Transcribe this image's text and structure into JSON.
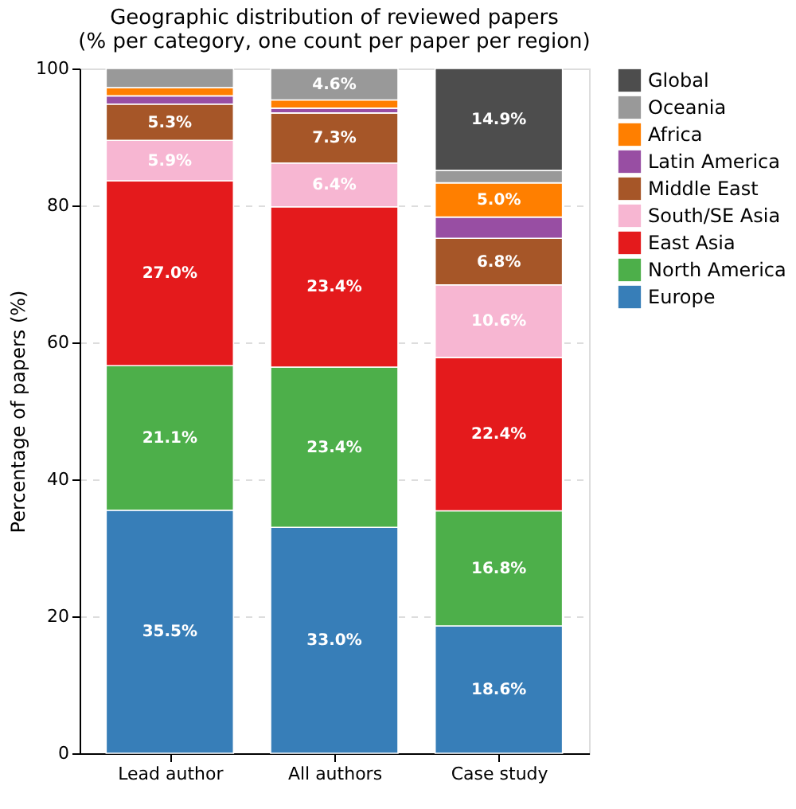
{
  "chart_data": {
    "type": "bar",
    "stacked": true,
    "title": "Geographic distribution of reviewed papers",
    "subtitle": "(% per category, one count per paper per region)",
    "ylabel": "Percentage of papers (%)",
    "categories": [
      "Lead author",
      "All authors",
      "Case study"
    ],
    "series": [
      {
        "name": "Europe",
        "color": "#377eb8",
        "values": [
          35.5,
          33.0,
          18.6
        ],
        "value_labels": [
          "35.5%",
          "33.0%",
          "18.6%"
        ]
      },
      {
        "name": "North America",
        "color": "#4daf4a",
        "values": [
          21.1,
          23.4,
          16.8
        ],
        "value_labels": [
          "21.1%",
          "23.4%",
          "16.8%"
        ]
      },
      {
        "name": "East Asia",
        "color": "#e41a1c",
        "values": [
          27.0,
          23.4,
          22.4
        ],
        "value_labels": [
          "27.0%",
          "23.4%",
          "22.4%"
        ]
      },
      {
        "name": "South/SE Asia",
        "color": "#f7b6d2",
        "values": [
          5.9,
          6.4,
          10.6
        ],
        "value_labels": [
          "5.9%",
          "6.4%",
          "10.6%"
        ]
      },
      {
        "name": "Middle East",
        "color": "#a65628",
        "values": [
          5.3,
          7.3,
          6.8
        ],
        "value_labels": [
          "5.3%",
          "7.3%",
          "6.8%"
        ]
      },
      {
        "name": "Latin America",
        "color": "#984ea3",
        "values": [
          1.2,
          0.7,
          3.1
        ],
        "value_labels": [
          null,
          null,
          null
        ]
      },
      {
        "name": "Africa",
        "color": "#ff7f00",
        "values": [
          1.2,
          1.2,
          5.0
        ],
        "value_labels": [
          null,
          null,
          "5.0%"
        ]
      },
      {
        "name": "Oceania",
        "color": "#999999",
        "values": [
          2.8,
          4.6,
          1.8
        ],
        "value_labels": [
          null,
          "4.6%",
          null
        ]
      },
      {
        "name": "Global",
        "color": "#4d4d4d",
        "values": [
          null,
          null,
          14.9
        ],
        "value_labels": [
          null,
          null,
          "14.9%"
        ]
      }
    ],
    "ylim": [
      0,
      100
    ],
    "yticks": [
      0,
      20,
      40,
      60,
      80,
      100
    ],
    "grid": "y",
    "legend": "right"
  }
}
